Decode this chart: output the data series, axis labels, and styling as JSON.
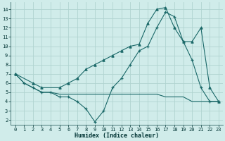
{
  "xlabel": "Humidex (Indice chaleur)",
  "background_color": "#d0ecea",
  "grid_color": "#b0d4d0",
  "line_color": "#1a6868",
  "xlim": [
    -0.5,
    23.5
  ],
  "ylim": [
    1.5,
    14.8
  ],
  "xticks": [
    0,
    1,
    2,
    3,
    4,
    5,
    6,
    7,
    8,
    9,
    10,
    11,
    12,
    13,
    14,
    15,
    16,
    17,
    18,
    19,
    20,
    21,
    22,
    23
  ],
  "yticks": [
    2,
    3,
    4,
    5,
    6,
    7,
    8,
    9,
    10,
    11,
    12,
    13,
    14
  ],
  "line1_x": [
    0,
    1,
    2,
    3,
    4,
    5,
    6,
    7,
    8,
    9,
    10,
    11,
    12,
    13,
    14,
    15,
    16,
    17,
    18,
    19,
    20,
    21,
    22,
    23
  ],
  "line1_y": [
    7.0,
    6.0,
    5.5,
    5.0,
    5.0,
    4.5,
    4.5,
    4.0,
    3.2,
    1.8,
    3.0,
    5.5,
    6.5,
    8.0,
    9.5,
    10.0,
    12.0,
    13.7,
    13.2,
    10.5,
    8.5,
    5.5,
    4.0,
    4.0
  ],
  "line2_x": [
    0,
    1,
    2,
    3,
    4,
    5,
    6,
    7,
    8,
    9,
    10,
    11,
    12,
    13,
    14,
    15,
    16,
    17,
    18,
    19,
    20,
    21,
    22,
    23
  ],
  "line2_y": [
    7.0,
    6.0,
    5.5,
    5.0,
    5.0,
    4.8,
    4.8,
    4.8,
    4.8,
    4.8,
    4.8,
    4.8,
    4.8,
    4.8,
    4.8,
    4.8,
    4.8,
    4.5,
    4.5,
    4.5,
    4.0,
    4.0,
    4.0,
    4.0
  ],
  "line3_x": [
    0,
    2,
    3,
    5,
    6,
    7,
    8,
    9,
    10,
    11,
    12,
    13,
    14,
    15,
    16,
    17,
    18,
    19,
    20,
    21,
    22,
    23
  ],
  "line3_y": [
    7.0,
    6.0,
    5.5,
    5.5,
    6.0,
    6.5,
    7.5,
    8.0,
    8.5,
    9.0,
    9.5,
    10.0,
    10.2,
    12.5,
    14.0,
    14.2,
    12.0,
    10.5,
    10.5,
    12.0,
    5.5,
    4.0
  ]
}
